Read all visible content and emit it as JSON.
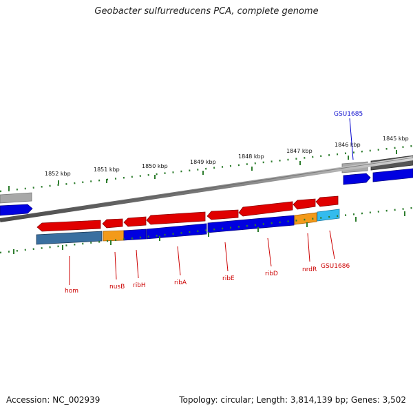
{
  "title": "Geobacter sulfurreducens PCA, complete genome",
  "scale_labels": [
    "1852 kbp",
    "1851 kbp",
    "1850 kbp",
    "1849 kbp",
    "1848 kbp",
    "1847 kbp",
    "1846 kbp",
    "1845 kbp"
  ],
  "genes": {
    "hom": "hom",
    "nusB": "nusB",
    "ribH": "ribH",
    "ribA": "ribA",
    "ribE": "ribE",
    "ribD": "ribD",
    "nrdR": "nrdR",
    "GSU1686": "GSU1686",
    "GSU1685": "GSU1685"
  },
  "colors": {
    "forward_cds": "#e00000",
    "gene_blue": "#0000e0",
    "steel": "#3a6fa0",
    "orange": "#f39a1a",
    "cyan": "#33bbee",
    "grey": "#a8a8a8",
    "dark_grey": "#555555",
    "tick": "#006600",
    "label_red": "#cc0000",
    "label_blue": "#0000cc"
  },
  "footer": {
    "accession": "Accession: NC_002939",
    "topology": "Topology: circular; Length: 3,814,139 bp; Genes: 3,502"
  }
}
